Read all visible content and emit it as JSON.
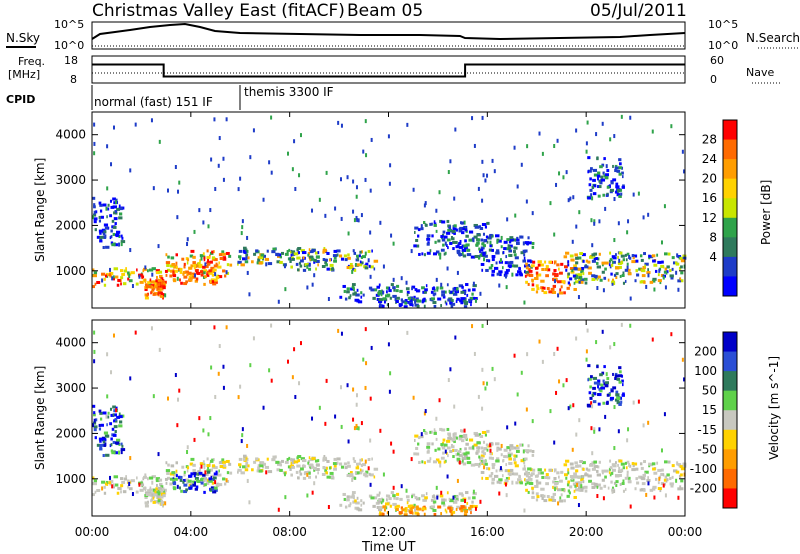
{
  "chart_data": {
    "type": "heatmap",
    "title": {
      "station": "Christmas Valley East (fitACF)",
      "beam": "Beam 05",
      "date": "05/Jul/2011"
    },
    "time_axis": {
      "label": "Time UT",
      "ticks": [
        "00:00",
        "04:00",
        "08:00",
        "12:00",
        "16:00",
        "20:00",
        "00:00"
      ],
      "range_hours": [
        0,
        24
      ]
    },
    "noise_panel": {
      "left_label": "N.Sky",
      "right_label": "N.Search",
      "left_ticks": [
        "10^5",
        "10^0"
      ],
      "right_ticks": [
        "10^5",
        "10^0"
      ]
    },
    "freq_panel": {
      "left_label_1": "Freq.",
      "left_label_2": "[MHz]",
      "right_label": "Nave",
      "left_ticks": [
        "18",
        "8"
      ],
      "right_ticks": [
        "60",
        "0"
      ],
      "freq_segments": [
        {
          "start_hour": 0,
          "end_hour": 2.9,
          "mhz": 15
        },
        {
          "start_hour": 2.9,
          "end_hour": 15.1,
          "mhz": 10.2
        },
        {
          "start_hour": 15.1,
          "end_hour": 24,
          "mhz": 15
        }
      ]
    },
    "cpid": {
      "label": "CPID",
      "modes": [
        {
          "name": "normal (fast) 151 IF",
          "start_hour": 0,
          "end_hour": 5.95
        },
        {
          "name": "themis 3300 IF",
          "start_hour": 5.95,
          "end_hour": 24
        }
      ]
    },
    "power_panel": {
      "ylabel": "Slant Range [km]",
      "yticks": [
        1000,
        2000,
        3000,
        4000
      ],
      "ylim": [
        180,
        4500
      ],
      "colorbar_label": "Power [dB]",
      "colorbar_ticks": [
        "28",
        "24",
        "20",
        "16",
        "12",
        "8",
        "4"
      ],
      "colorbar_colors": [
        "#ff0000",
        "#ff6a00",
        "#ff9d00",
        "#ffd200",
        "#c8e600",
        "#2fa34a",
        "#2f7a5c",
        "#1e3cc8",
        "#0000ff"
      ]
    },
    "velocity_panel": {
      "ylabel": "Slant Range [km]",
      "yticks": [
        1000,
        2000,
        3000,
        4000
      ],
      "ylim": [
        180,
        4500
      ],
      "colorbar_label": "Velocity [m s^-1]",
      "colorbar_ticks": [
        "200",
        "100",
        "50",
        "15",
        "-15",
        "-50",
        "-100",
        "-200"
      ],
      "colorbar_colors": [
        "#0000c8",
        "#2b4fd6",
        "#2f7a5c",
        "#5fd14a",
        "#c8c8c0",
        "#ffd200",
        "#ff9d00",
        "#ff6a00",
        "#ff0000"
      ]
    },
    "scatter_regions": [
      {
        "t0": 0.0,
        "t1": 2.8,
        "r0": 650,
        "r1": 1050,
        "power": "high",
        "vel": "grey"
      },
      {
        "t0": 2.1,
        "t1": 2.9,
        "r0": 400,
        "r1": 800,
        "power": "very_high",
        "vel": "grey"
      },
      {
        "t0": 2.9,
        "t1": 5.5,
        "r0": 850,
        "r1": 1450,
        "power": "high",
        "vel": "grey"
      },
      {
        "t0": 3.2,
        "t1": 5.0,
        "r0": 700,
        "r1": 1150,
        "power": "very_high",
        "vel": "blue"
      },
      {
        "t0": 5.5,
        "t1": 9.5,
        "r0": 1100,
        "r1": 1500,
        "power": "medium",
        "vel": "grey"
      },
      {
        "t0": 8.0,
        "t1": 11.5,
        "r0": 1000,
        "r1": 1450,
        "power": "medium",
        "vel": "grey"
      },
      {
        "t0": 10.0,
        "t1": 15.5,
        "r0": 300,
        "r1": 700,
        "power": "low",
        "vel": "grey"
      },
      {
        "t0": 11.5,
        "t1": 15.5,
        "r0": 200,
        "r1": 400,
        "power": "low",
        "vel": "orange"
      },
      {
        "t0": 13.0,
        "t1": 16.0,
        "r0": 1300,
        "r1": 2100,
        "power": "low",
        "vel": "grey"
      },
      {
        "t0": 15.5,
        "t1": 17.8,
        "r0": 900,
        "r1": 1800,
        "power": "low",
        "vel": "grey"
      },
      {
        "t0": 17.5,
        "t1": 19.5,
        "r0": 500,
        "r1": 1200,
        "power": "very_high",
        "vel": "grey"
      },
      {
        "t0": 19.0,
        "t1": 24.0,
        "r0": 700,
        "r1": 1400,
        "power": "medium",
        "vel": "grey"
      },
      {
        "t0": 0.0,
        "t1": 1.2,
        "r0": 1500,
        "r1": 2600,
        "power": "low",
        "vel": "blue"
      },
      {
        "t0": 20.0,
        "t1": 21.5,
        "r0": 2600,
        "r1": 3500,
        "power": "low",
        "vel": "blue"
      }
    ]
  }
}
